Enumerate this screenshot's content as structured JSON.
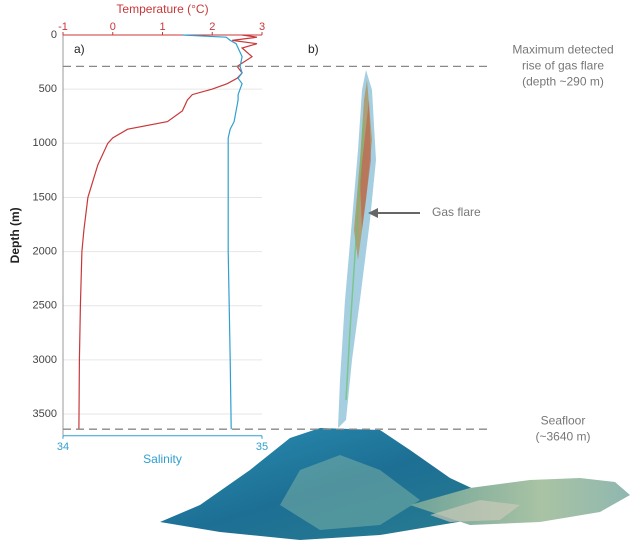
{
  "chart_data": {
    "type": "line",
    "panel_labels": [
      "a)",
      "b)"
    ],
    "ylabel": "Depth (m)",
    "ylim": [
      0,
      3700
    ],
    "yticks": [
      0,
      500,
      1000,
      1500,
      2000,
      2500,
      3000,
      3500
    ],
    "x2label": "Temperature (°C)",
    "x2lim": [
      -1,
      3
    ],
    "x2ticks": [
      -1,
      0,
      1,
      2,
      3
    ],
    "xlabel": "Salinity",
    "xlim": [
      34,
      35
    ],
    "xticks": [
      34,
      35
    ],
    "grid": true,
    "depth": [
      0,
      20,
      50,
      80,
      120,
      200,
      290,
      350,
      400,
      450,
      500,
      550,
      600,
      700,
      800,
      870,
      950,
      1000,
      1200,
      1500,
      1800,
      2000,
      2500,
      3000,
      3640
    ],
    "series": [
      {
        "name": "Temperature (°C)",
        "color": "#c8373a",
        "axis": "x2",
        "values": [
          2.6,
          2.9,
          2.4,
          2.9,
          2.6,
          2.8,
          2.5,
          2.6,
          2.5,
          2.3,
          2.0,
          1.6,
          1.5,
          1.4,
          1.1,
          0.3,
          0.0,
          -0.1,
          -0.3,
          -0.5,
          -0.58,
          -0.62,
          -0.65,
          -0.67,
          -0.68
        ]
      },
      {
        "name": "Salinity",
        "color": "#2f9fd0",
        "axis": "x",
        "values": [
          34.6,
          34.82,
          34.84,
          34.87,
          34.88,
          34.9,
          34.89,
          34.9,
          34.88,
          34.9,
          34.89,
          34.88,
          34.88,
          34.87,
          34.86,
          34.84,
          34.83,
          34.83,
          34.83,
          34.83,
          34.83,
          34.83,
          34.835,
          34.84,
          34.845
        ]
      }
    ],
    "hlines": [
      {
        "value": 290,
        "label": [
          "Maximum detected",
          "rise of gas flare",
          "(depth ~290 m)"
        ]
      },
      {
        "value": 3640,
        "label": [
          "Seafloor",
          "(~3640 m)"
        ]
      }
    ],
    "annotation": "Gas flare"
  }
}
